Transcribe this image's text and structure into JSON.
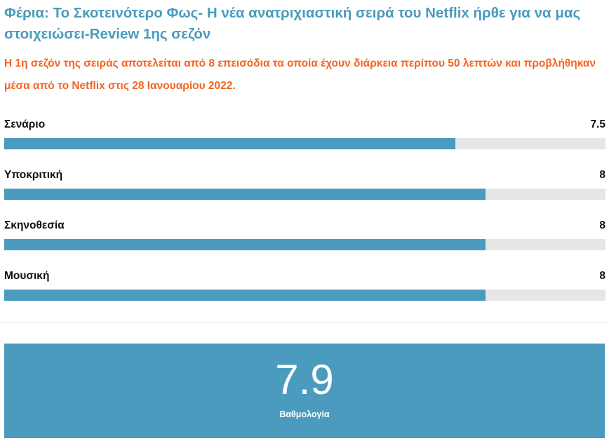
{
  "review": {
    "title": "Φέρια: Το Σκοτεινότερο Φως- Η νέα ανατριχιαστική σειρά του Netflix ήρθε για να μας στοιχειώσει-Review 1ης σεζόν",
    "summary": "Η 1η σεζόν της σειράς αποτελείται από 8 επεισόδια τα οποία έχουν διάρκεια περίπου 50 λεπτών και προβλήθηκαν μέσα από το Netflix στις 28 Ιανουαρίου 2022.",
    "scale_max": 10,
    "criteria": [
      {
        "label": "Σενάριο",
        "score": "7.5",
        "value": 7.5
      },
      {
        "label": "Υποκριτική",
        "score": "8",
        "value": 8
      },
      {
        "label": "Σκηνοθεσία",
        "score": "8",
        "value": 8
      },
      {
        "label": "Μουσική",
        "score": "8",
        "value": 8
      }
    ],
    "total": {
      "score": "7.9",
      "label": "Βαθμολογία"
    }
  },
  "colors": {
    "title": "#4a9bbd",
    "summary": "#f26522",
    "bar_fill": "#4a9bbd",
    "bar_track": "#e6e6e6",
    "total_background": "#4a9bbd"
  }
}
